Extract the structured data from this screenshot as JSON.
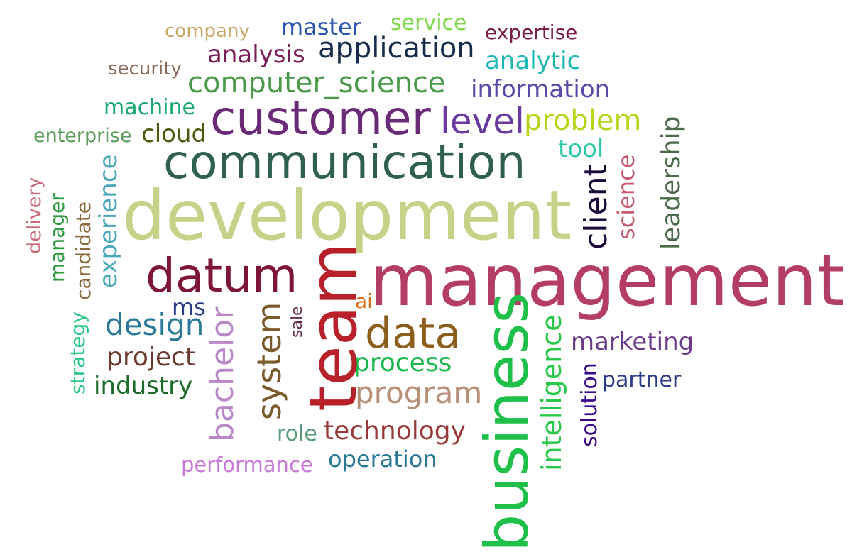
{
  "words": [
    {
      "text": "management",
      "color": "#b33d66"
    },
    {
      "text": "development",
      "color": "#c5d287"
    },
    {
      "text": "communication",
      "color": "#2f5f4f"
    },
    {
      "text": "customer",
      "color": "#6a2a78"
    },
    {
      "text": "team",
      "color": "#b8202a"
    },
    {
      "text": "business",
      "color": "#1fc04a"
    },
    {
      "text": "datum",
      "color": "#7d1538"
    },
    {
      "text": "data",
      "color": "#8c5e1c"
    },
    {
      "text": "application",
      "color": "#162c4a"
    },
    {
      "text": "level",
      "color": "#6a3aa0"
    },
    {
      "text": "problem",
      "color": "#b7d41a"
    },
    {
      "text": "computer_science",
      "color": "#4a9a4a"
    },
    {
      "text": "information",
      "color": "#5a4aa8"
    },
    {
      "text": "analysis",
      "color": "#7a1e5a"
    },
    {
      "text": "master",
      "color": "#2a55b0"
    },
    {
      "text": "service",
      "color": "#7ed84a"
    },
    {
      "text": "expertise",
      "color": "#7a1e4a"
    },
    {
      "text": "analytic",
      "color": "#1ab8b0"
    },
    {
      "text": "company",
      "color": "#c8a868"
    },
    {
      "text": "security",
      "color": "#8a6a5a"
    },
    {
      "text": "machine",
      "color": "#1aa870"
    },
    {
      "text": "enterprise",
      "color": "#5a9a5a"
    },
    {
      "text": "cloud",
      "color": "#4a5a0a"
    },
    {
      "text": "tool",
      "color": "#2ac8a8"
    },
    {
      "text": "client",
      "color": "#1a0a3a"
    },
    {
      "text": "science",
      "color": "#c85a70"
    },
    {
      "text": "leadership",
      "color": "#4a6a4a"
    },
    {
      "text": "design",
      "color": "#2a7898"
    },
    {
      "text": "project",
      "color": "#6a3a2a"
    },
    {
      "text": "industry",
      "color": "#1a6a2a"
    },
    {
      "text": "ms",
      "color": "#2a3a88"
    },
    {
      "text": "ai",
      "color": "#d86a1a"
    },
    {
      "text": "process",
      "color": "#1ab84a"
    },
    {
      "text": "program",
      "color": "#b89078"
    },
    {
      "text": "technology",
      "color": "#983a3a"
    },
    {
      "text": "operation",
      "color": "#2a7898"
    },
    {
      "text": "role",
      "color": "#5a9a7a"
    },
    {
      "text": "performance",
      "color": "#c87ad8"
    },
    {
      "text": "marketing",
      "color": "#6a3a8a"
    },
    {
      "text": "partner",
      "color": "#2a3a88"
    },
    {
      "text": "solution",
      "color": "#3a0a8a"
    },
    {
      "text": "intelligence",
      "color": "#2ac84a"
    },
    {
      "text": "system",
      "color": "#7a5a2a"
    },
    {
      "text": "bachelor",
      "color": "#b888c8"
    },
    {
      "text": "sale",
      "color": "#6a2a4a"
    },
    {
      "text": "strategy",
      "color": "#2ac888"
    },
    {
      "text": "experience",
      "color": "#4aa8b8"
    },
    {
      "text": "candidate",
      "color": "#8a6a3a"
    },
    {
      "text": "manager",
      "color": "#2a9a3a"
    },
    {
      "text": "delivery",
      "color": "#c86a7a"
    }
  ]
}
